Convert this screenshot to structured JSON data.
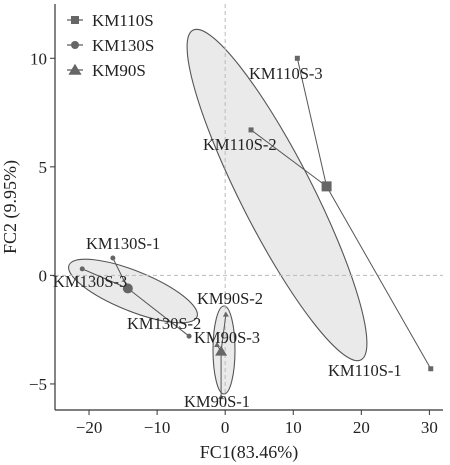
{
  "chart_data": {
    "type": "scatter",
    "xlabel": "FC1(83.46%)",
    "ylabel": "FC2 (9.95%)",
    "xlim": [
      -25,
      32
    ],
    "ylim": [
      -6.2,
      12.5
    ],
    "xticks": [
      -20,
      -10,
      0,
      10,
      20,
      30
    ],
    "yticks": [
      -5,
      0,
      5,
      10
    ],
    "xtick_labels": [
      "−20",
      "−10",
      "0",
      "10",
      "20",
      "30"
    ],
    "ytick_labels": [
      "−5",
      "0",
      "5",
      "10"
    ],
    "zero_lines": "dashed",
    "grid": false,
    "legend_position": "top-left",
    "colors": {
      "ellipse_fill": "#e6e6e6",
      "ellipse_stroke": "#555555",
      "marker": "#666666",
      "zero_line": "#bbbbbb"
    },
    "series": [
      {
        "name": "KM110S",
        "marker": "square",
        "centroid": {
          "x": 14.9,
          "y": 4.1
        },
        "points": [
          {
            "label": "KM110S-1",
            "x": 30.2,
            "y": -4.3
          },
          {
            "label": "KM110S-2",
            "x": 3.8,
            "y": 6.7
          },
          {
            "label": "KM110S-3",
            "x": 10.6,
            "y": 10.0
          }
        ]
      },
      {
        "name": "KM130S",
        "marker": "circle",
        "centroid": {
          "x": -14.3,
          "y": -0.6
        },
        "points": [
          {
            "label": "KM130S-1",
            "x": -16.5,
            "y": 0.8
          },
          {
            "label": "KM130S-2",
            "x": -5.3,
            "y": -2.8
          },
          {
            "label": "KM130S-3",
            "x": -21.0,
            "y": 0.3
          }
        ]
      },
      {
        "name": "KM90S",
        "marker": "triangle",
        "centroid": {
          "x": -0.6,
          "y": -3.5
        },
        "points": [
          {
            "label": "KM90S-1",
            "x": -0.6,
            "y": -5.6
          },
          {
            "label": "KM90S-2",
            "x": 0.1,
            "y": -1.8
          },
          {
            "label": "KM90S-3",
            "x": -1.2,
            "y": -3.2
          }
        ]
      }
    ]
  }
}
